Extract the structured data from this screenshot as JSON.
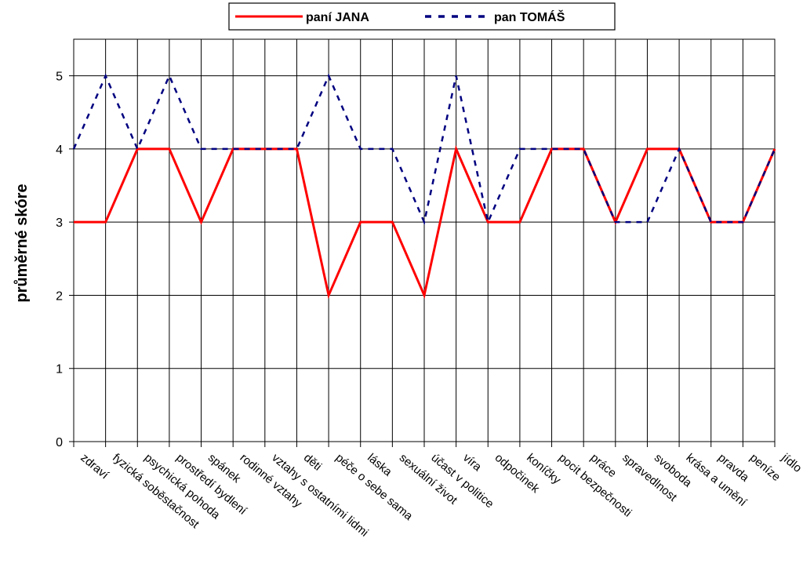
{
  "chart_data": {
    "type": "line",
    "ylabel": "průměrné skóre",
    "ylim": [
      0,
      5.5
    ],
    "yticks": [
      0,
      1,
      2,
      3,
      4,
      5
    ],
    "grid": true,
    "legend": "top-center",
    "categories": [
      "zdraví",
      "fyzická soběstačnost",
      "psychická pohoda",
      "prostředí bydlení",
      "spánek",
      "rodinné vztahy",
      "vztahy s ostatními lidmi",
      "děti",
      "péče o sebe sama",
      "láska",
      "sexuální život",
      "účast v politice",
      "víra",
      "odpočinek",
      "koníčky",
      "pocit bezpečnosti",
      "práce",
      "spravedlnost",
      "svoboda",
      "krása a umění",
      "pravda",
      "peníze",
      "jídlo"
    ],
    "series": [
      {
        "name": "paní JANA",
        "color": "#ff0000",
        "style": "solid",
        "values": [
          3,
          3,
          4,
          4,
          3,
          4,
          4,
          4,
          2,
          3,
          3,
          2,
          4,
          3,
          3,
          4,
          4,
          3,
          4,
          4,
          3,
          3,
          4
        ]
      },
      {
        "name": "pan TOMÁŠ",
        "color": "#000080",
        "style": "dashed",
        "values": [
          4,
          5,
          4,
          5,
          4,
          4,
          4,
          4,
          5,
          4,
          4,
          3,
          5,
          3,
          4,
          4,
          4,
          3,
          3,
          4,
          3,
          3,
          4
        ]
      }
    ]
  }
}
